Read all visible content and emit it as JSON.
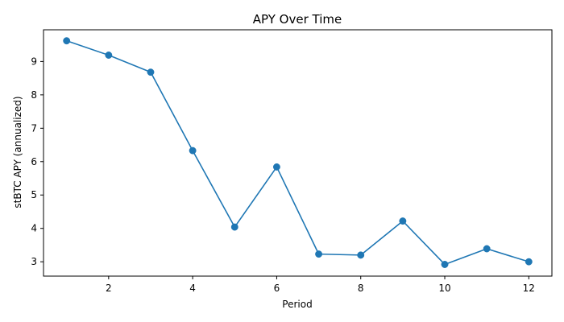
{
  "chart_data": {
    "type": "line",
    "title": "APY Over Time",
    "xlabel": "Period",
    "ylabel": "stBTC APY (annualized)",
    "x": [
      1,
      2,
      3,
      4,
      5,
      6,
      7,
      8,
      9,
      10,
      11,
      12
    ],
    "series": [
      {
        "values": [
          9.62,
          9.19,
          8.68,
          6.33,
          4.04,
          5.84,
          3.23,
          3.2,
          4.22,
          2.92,
          3.39,
          3.0
        ],
        "color": "#1f77b4",
        "marker": "circle"
      }
    ],
    "xlim": [
      0.45,
      12.55
    ],
    "ylim": [
      2.57,
      9.95
    ],
    "xticks": [
      2,
      4,
      6,
      8,
      10,
      12
    ],
    "yticks": [
      3,
      4,
      5,
      6,
      7,
      8,
      9
    ],
    "grid": false,
    "legend": false
  }
}
